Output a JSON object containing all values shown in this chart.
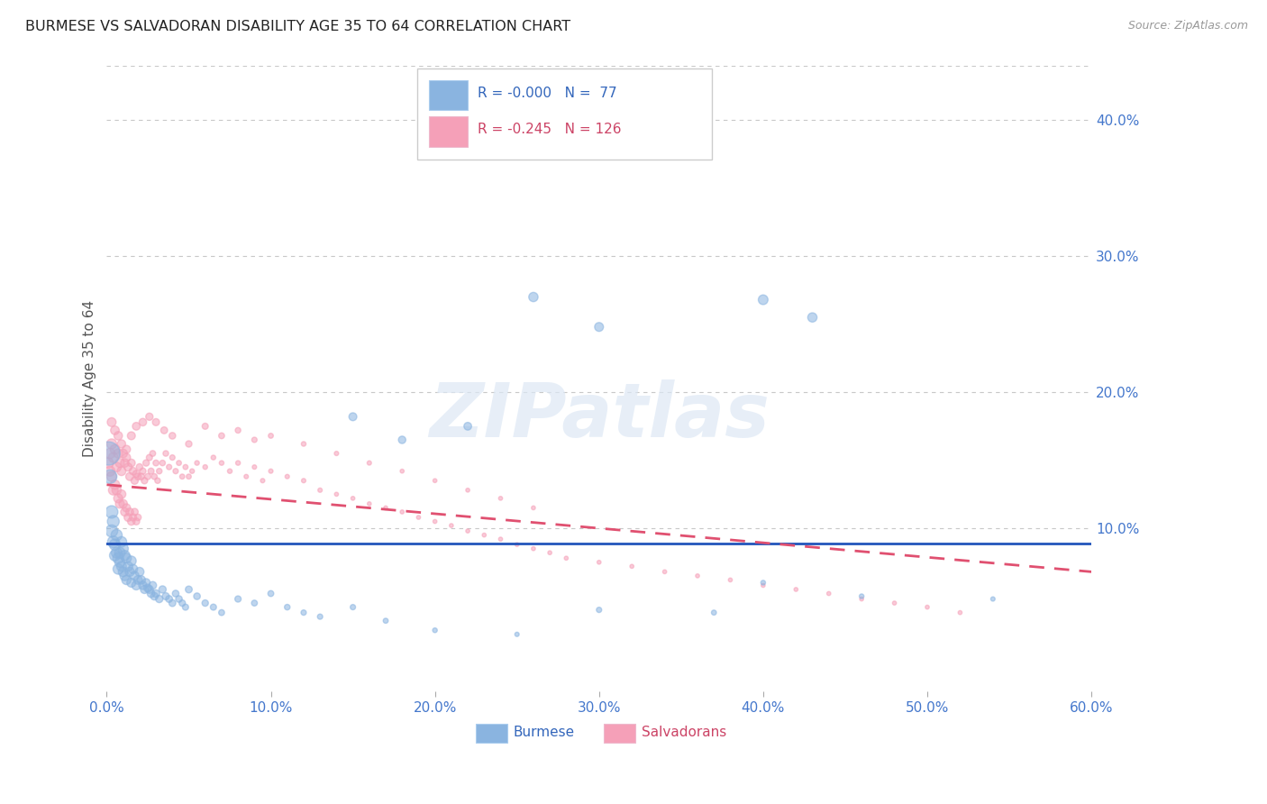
{
  "title": "BURMESE VS SALVADORAN DISABILITY AGE 35 TO 64 CORRELATION CHART",
  "source": "Source: ZipAtlas.com",
  "ylabel": "Disability Age 35 to 64",
  "xlim": [
    0.0,
    0.6
  ],
  "ylim": [
    -0.02,
    0.44
  ],
  "xtick_vals": [
    0.0,
    0.1,
    0.2,
    0.3,
    0.4,
    0.5,
    0.6
  ],
  "xtick_labels": [
    "0.0%",
    "10.0%",
    "20.0%",
    "30.0%",
    "40.0%",
    "50.0%",
    "60.0%"
  ],
  "yticks_right": [
    0.1,
    0.2,
    0.3,
    0.4
  ],
  "ytick_labels_right": [
    "10.0%",
    "20.0%",
    "30.0%",
    "40.0%"
  ],
  "grid_color": "#c8c8c8",
  "background_color": "#ffffff",
  "burmese_color": "#8ab4e0",
  "salvadoran_color": "#f5a0b8",
  "burmese_line_color": "#2255bb",
  "salvadoran_line_color": "#e05070",
  "burmese_R": "-0.000",
  "burmese_N": "77",
  "salvadoran_R": "-0.245",
  "salvadoran_N": "126",
  "legend_label_burmese": "Burmese",
  "legend_label_salvadoran": "Salvadorans",
  "watermark": "ZIPatlas",
  "burmese_line_y": 0.089,
  "salvadoran_line_start_y": 0.132,
  "salvadoran_line_end_y": 0.068,
  "burmese_x": [
    0.001,
    0.002,
    0.003,
    0.003,
    0.004,
    0.004,
    0.005,
    0.005,
    0.006,
    0.006,
    0.007,
    0.007,
    0.008,
    0.008,
    0.009,
    0.009,
    0.01,
    0.01,
    0.011,
    0.011,
    0.012,
    0.012,
    0.013,
    0.014,
    0.015,
    0.015,
    0.016,
    0.017,
    0.018,
    0.019,
    0.02,
    0.021,
    0.022,
    0.023,
    0.024,
    0.025,
    0.026,
    0.027,
    0.028,
    0.029,
    0.03,
    0.032,
    0.034,
    0.036,
    0.038,
    0.04,
    0.042,
    0.044,
    0.046,
    0.048,
    0.05,
    0.055,
    0.06,
    0.065,
    0.07,
    0.08,
    0.09,
    0.1,
    0.11,
    0.12,
    0.13,
    0.15,
    0.17,
    0.2,
    0.25,
    0.3,
    0.37,
    0.4,
    0.43,
    0.46,
    0.15,
    0.18,
    0.22,
    0.26,
    0.3,
    0.4,
    0.54
  ],
  "burmese_y": [
    0.155,
    0.138,
    0.112,
    0.098,
    0.09,
    0.105,
    0.088,
    0.08,
    0.095,
    0.082,
    0.078,
    0.07,
    0.082,
    0.075,
    0.09,
    0.072,
    0.085,
    0.068,
    0.08,
    0.065,
    0.078,
    0.062,
    0.072,
    0.068,
    0.076,
    0.06,
    0.07,
    0.065,
    0.058,
    0.062,
    0.068,
    0.062,
    0.058,
    0.055,
    0.06,
    0.056,
    0.055,
    0.052,
    0.058,
    0.05,
    0.052,
    0.048,
    0.055,
    0.05,
    0.048,
    0.045,
    0.052,
    0.048,
    0.045,
    0.042,
    0.055,
    0.05,
    0.045,
    0.042,
    0.038,
    0.048,
    0.045,
    0.052,
    0.042,
    0.038,
    0.035,
    0.042,
    0.032,
    0.025,
    0.022,
    0.04,
    0.038,
    0.268,
    0.255,
    0.05,
    0.182,
    0.165,
    0.175,
    0.27,
    0.248,
    0.06,
    0.048
  ],
  "burmese_size": [
    350,
    120,
    100,
    95,
    85,
    90,
    80,
    75,
    80,
    72,
    75,
    68,
    72,
    65,
    70,
    62,
    68,
    60,
    65,
    58,
    62,
    55,
    58,
    55,
    60,
    52,
    55,
    50,
    52,
    48,
    50,
    46,
    44,
    42,
    42,
    40,
    40,
    38,
    38,
    36,
    36,
    34,
    34,
    32,
    30,
    30,
    28,
    28,
    26,
    24,
    30,
    28,
    26,
    24,
    22,
    25,
    22,
    22,
    20,
    18,
    18,
    18,
    16,
    14,
    12,
    18,
    16,
    60,
    55,
    14,
    40,
    35,
    38,
    55,
    50,
    14,
    12
  ],
  "salvadoran_x": [
    0.001,
    0.002,
    0.002,
    0.003,
    0.003,
    0.004,
    0.004,
    0.005,
    0.005,
    0.006,
    0.006,
    0.007,
    0.007,
    0.008,
    0.008,
    0.009,
    0.009,
    0.01,
    0.01,
    0.011,
    0.011,
    0.012,
    0.012,
    0.013,
    0.013,
    0.014,
    0.014,
    0.015,
    0.015,
    0.016,
    0.016,
    0.017,
    0.017,
    0.018,
    0.018,
    0.019,
    0.019,
    0.02,
    0.021,
    0.022,
    0.023,
    0.024,
    0.025,
    0.026,
    0.027,
    0.028,
    0.029,
    0.03,
    0.031,
    0.032,
    0.034,
    0.036,
    0.038,
    0.04,
    0.042,
    0.044,
    0.046,
    0.048,
    0.05,
    0.052,
    0.055,
    0.06,
    0.065,
    0.07,
    0.075,
    0.08,
    0.085,
    0.09,
    0.095,
    0.1,
    0.11,
    0.12,
    0.13,
    0.14,
    0.15,
    0.16,
    0.17,
    0.18,
    0.19,
    0.2,
    0.21,
    0.22,
    0.23,
    0.24,
    0.25,
    0.26,
    0.27,
    0.28,
    0.3,
    0.32,
    0.34,
    0.36,
    0.38,
    0.4,
    0.42,
    0.44,
    0.46,
    0.48,
    0.5,
    0.52,
    0.003,
    0.005,
    0.007,
    0.009,
    0.012,
    0.015,
    0.018,
    0.022,
    0.026,
    0.03,
    0.035,
    0.04,
    0.05,
    0.06,
    0.07,
    0.08,
    0.09,
    0.1,
    0.12,
    0.14,
    0.16,
    0.18,
    0.2,
    0.22,
    0.24,
    0.26
  ],
  "salvadoran_y": [
    0.148,
    0.155,
    0.142,
    0.162,
    0.138,
    0.152,
    0.128,
    0.158,
    0.132,
    0.145,
    0.128,
    0.155,
    0.122,
    0.148,
    0.118,
    0.142,
    0.125,
    0.155,
    0.118,
    0.148,
    0.112,
    0.152,
    0.115,
    0.145,
    0.108,
    0.138,
    0.112,
    0.148,
    0.105,
    0.142,
    0.108,
    0.135,
    0.112,
    0.14,
    0.105,
    0.138,
    0.108,
    0.145,
    0.138,
    0.142,
    0.135,
    0.148,
    0.138,
    0.152,
    0.142,
    0.155,
    0.138,
    0.148,
    0.135,
    0.142,
    0.148,
    0.155,
    0.145,
    0.152,
    0.142,
    0.148,
    0.138,
    0.145,
    0.138,
    0.142,
    0.148,
    0.145,
    0.152,
    0.148,
    0.142,
    0.148,
    0.138,
    0.145,
    0.135,
    0.142,
    0.138,
    0.135,
    0.128,
    0.125,
    0.122,
    0.118,
    0.115,
    0.112,
    0.108,
    0.105,
    0.102,
    0.098,
    0.095,
    0.092,
    0.088,
    0.085,
    0.082,
    0.078,
    0.075,
    0.072,
    0.068,
    0.065,
    0.062,
    0.058,
    0.055,
    0.052,
    0.048,
    0.045,
    0.042,
    0.038,
    0.178,
    0.172,
    0.168,
    0.162,
    0.158,
    0.168,
    0.175,
    0.178,
    0.182,
    0.178,
    0.172,
    0.168,
    0.162,
    0.175,
    0.168,
    0.172,
    0.165,
    0.168,
    0.162,
    0.155,
    0.148,
    0.142,
    0.135,
    0.128,
    0.122,
    0.115
  ],
  "salvadoran_size": [
    70,
    68,
    65,
    65,
    62,
    62,
    60,
    60,
    58,
    58,
    55,
    55,
    52,
    52,
    50,
    50,
    48,
    48,
    46,
    46,
    44,
    44,
    42,
    42,
    40,
    40,
    38,
    38,
    36,
    36,
    34,
    34,
    32,
    32,
    30,
    30,
    28,
    28,
    28,
    26,
    26,
    26,
    24,
    24,
    24,
    22,
    22,
    22,
    20,
    20,
    20,
    20,
    18,
    18,
    18,
    16,
    16,
    16,
    16,
    14,
    14,
    14,
    14,
    14,
    14,
    14,
    12,
    12,
    12,
    12,
    12,
    12,
    12,
    10,
    10,
    10,
    10,
    10,
    10,
    10,
    10,
    10,
    10,
    10,
    10,
    10,
    10,
    10,
    10,
    10,
    10,
    10,
    10,
    10,
    10,
    10,
    10,
    10,
    10,
    10,
    50,
    48,
    46,
    44,
    42,
    40,
    38,
    36,
    34,
    32,
    30,
    28,
    26,
    24,
    22,
    20,
    18,
    16,
    14,
    12,
    12,
    10,
    10,
    10,
    10,
    10
  ]
}
